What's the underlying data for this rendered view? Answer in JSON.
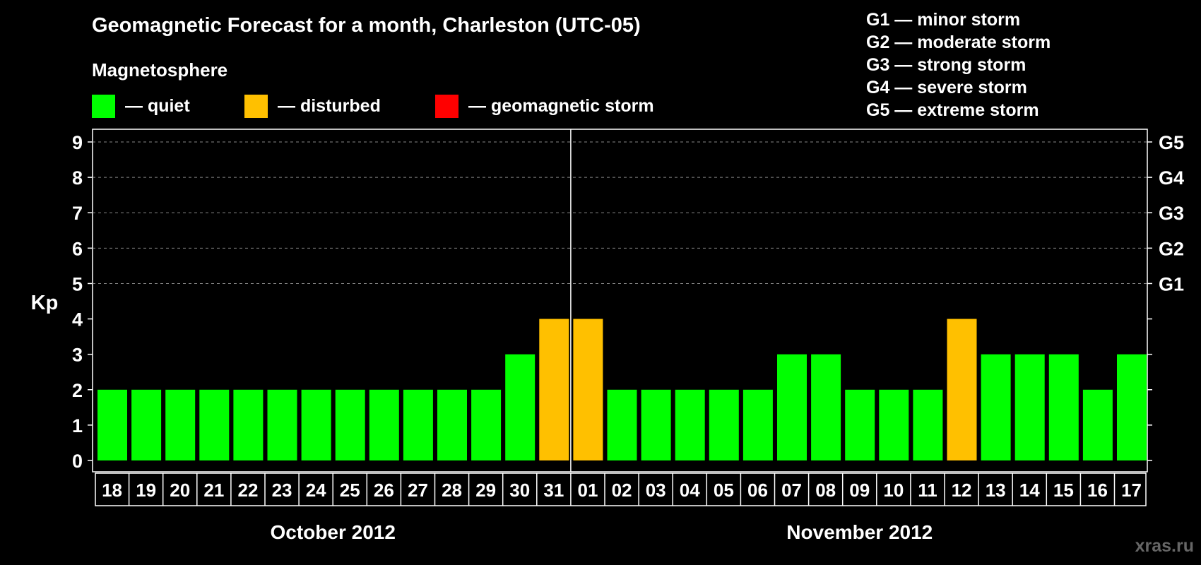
{
  "title": "Geomagnetic Forecast for a month, Charleston (UTC-05)",
  "subtitle": "Magnetosphere",
  "legend": [
    {
      "label": "— quiet",
      "color": "#00ff00"
    },
    {
      "label": "— disturbed",
      "color": "#ffc000"
    },
    {
      "label": "— geomagnetic storm",
      "color": "#ff0000"
    }
  ],
  "storm_levels": [
    "G1 — minor storm",
    "G2 — moderate storm",
    "G3 — strong storm",
    "G4 — severe storm",
    "G5 — extreme storm"
  ],
  "watermark": "xras.ru",
  "chart_data": {
    "type": "bar",
    "ylabel": "Kp",
    "ylim": [
      0,
      9
    ],
    "yticks": [
      0,
      1,
      2,
      3,
      4,
      5,
      6,
      7,
      8,
      9
    ],
    "right_axis": [
      {
        "kp": 5,
        "label": "G1"
      },
      {
        "kp": 6,
        "label": "G2"
      },
      {
        "kp": 7,
        "label": "G3"
      },
      {
        "kp": 8,
        "label": "G4"
      },
      {
        "kp": 9,
        "label": "G5"
      }
    ],
    "grid": "dashed horizontal lines at Kp 5–9",
    "months": [
      {
        "label": "October 2012",
        "categories": [
          "18",
          "19",
          "20",
          "21",
          "22",
          "23",
          "24",
          "25",
          "26",
          "27",
          "28",
          "29",
          "30",
          "31"
        ]
      },
      {
        "label": "November 2012",
        "categories": [
          "01",
          "02",
          "03",
          "04",
          "05",
          "06",
          "07",
          "08",
          "09",
          "10",
          "11",
          "12",
          "13",
          "14",
          "15",
          "16",
          "17"
        ]
      }
    ],
    "categories": [
      "18",
      "19",
      "20",
      "21",
      "22",
      "23",
      "24",
      "25",
      "26",
      "27",
      "28",
      "29",
      "30",
      "31",
      "01",
      "02",
      "03",
      "04",
      "05",
      "06",
      "07",
      "08",
      "09",
      "10",
      "11",
      "12",
      "13",
      "14",
      "15",
      "16",
      "17"
    ],
    "values": [
      2,
      2,
      2,
      2,
      2,
      2,
      2,
      2,
      2,
      2,
      2,
      2,
      3,
      4,
      4,
      2,
      2,
      2,
      2,
      2,
      3,
      3,
      2,
      2,
      2,
      4,
      3,
      3,
      3,
      2,
      3
    ],
    "colors": {
      "quiet": "#00ff00",
      "disturbed": "#ffc000",
      "storm": "#ff0000"
    }
  }
}
